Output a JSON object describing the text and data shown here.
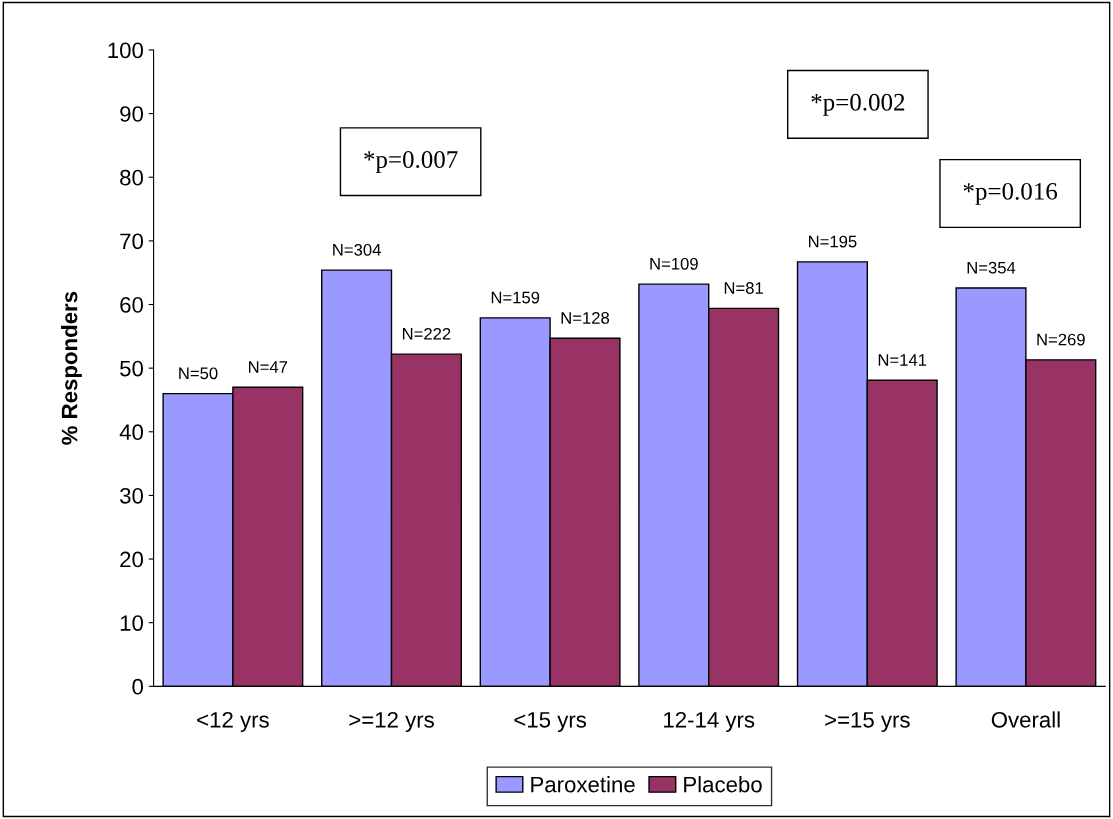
{
  "chart_data": {
    "type": "bar",
    "ylabel": "% Responders",
    "categories": [
      "<12 yrs",
      ">=12 yrs",
      "<15 yrs",
      "12-14 yrs",
      ">=15 yrs",
      "Overall"
    ],
    "series": [
      {
        "name": "Paroxetine",
        "color": "#9999ff",
        "values": [
          46,
          65.4,
          57.9,
          63.2,
          66.7,
          62.6
        ]
      },
      {
        "name": "Placebo",
        "color": "#993366",
        "values": [
          47,
          52.2,
          54.7,
          59.4,
          48.1,
          51.3
        ]
      }
    ],
    "ylim": [
      0,
      100
    ],
    "yticks": [
      0,
      10,
      20,
      30,
      40,
      50,
      60,
      70,
      80,
      90,
      100
    ],
    "annotations": [
      "*p=0.007",
      "*p=0.002",
      "*p=0.016",
      {
        "text": "N=50",
        "x": "<12 yrs",
        "y": 46
      },
      {
        "text": "N=304",
        "x": ">=12 yrs",
        "y": 65.4
      },
      {
        "text": "N=159",
        "x": "<15 yrs",
        "y": 57.9
      },
      {
        "text": "N=109",
        "x": "12-14 yrs",
        "y": 63.2
      },
      {
        "text": "N=195",
        "x": ">=15 yrs",
        "y": 66.7
      },
      {
        "text": "N=354",
        "x": "Overall",
        "y": 62.6
      },
      {
        "text": "N=47",
        "x": "<12 yrs",
        "y": 47
      },
      {
        "text": "N=222",
        "x": ">=12 yrs",
        "y": 52.2
      },
      {
        "text": "N=128",
        "x": "<15 yrs",
        "y": 54.7
      },
      {
        "text": "N=81",
        "x": "12-14 yrs",
        "y": 59.4
      },
      {
        "text": "N=141",
        "x": ">=15 yrs",
        "y": 48.1
      },
      {
        "text": "N=269",
        "x": "Overall",
        "y": 51.3
      }
    ],
    "grid": false,
    "legend": "bottom"
  }
}
